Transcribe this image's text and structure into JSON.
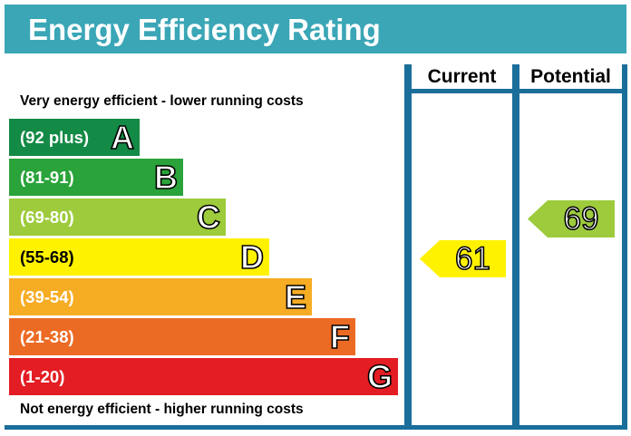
{
  "title": "Energy Efficiency Rating",
  "top_caption": "Very energy efficient - lower running costs",
  "bottom_caption": "Not energy efficient - higher running costs",
  "columns": {
    "current": "Current",
    "potential": "Potential"
  },
  "colors": {
    "header": "#3aa6b6",
    "grid": "#1a6e9a"
  },
  "chart_data": {
    "type": "bar",
    "categories": [
      "A",
      "B",
      "C",
      "D",
      "E",
      "F",
      "G"
    ],
    "bands": [
      {
        "letter": "A",
        "range": "(92 plus)",
        "min": 92,
        "max": 100,
        "color": "#138a45"
      },
      {
        "letter": "B",
        "range": "(81-91)",
        "min": 81,
        "max": 91,
        "color": "#2aa33a"
      },
      {
        "letter": "C",
        "range": "(69-80)",
        "min": 69,
        "max": 80,
        "color": "#9dcb3c"
      },
      {
        "letter": "D",
        "range": "(55-68)",
        "min": 55,
        "max": 68,
        "color": "#fff200"
      },
      {
        "letter": "E",
        "range": "(39-54)",
        "min": 39,
        "max": 54,
        "color": "#f6ac23"
      },
      {
        "letter": "F",
        "range": "(21-38)",
        "min": 21,
        "max": 38,
        "color": "#ec6b24"
      },
      {
        "letter": "G",
        "range": "(1-20)",
        "min": 1,
        "max": 20,
        "color": "#e31d23"
      }
    ],
    "current": {
      "value": 61,
      "band": "D",
      "color": "#fff200"
    },
    "potential": {
      "value": 69,
      "band": "C",
      "color": "#9dcb3c"
    }
  }
}
